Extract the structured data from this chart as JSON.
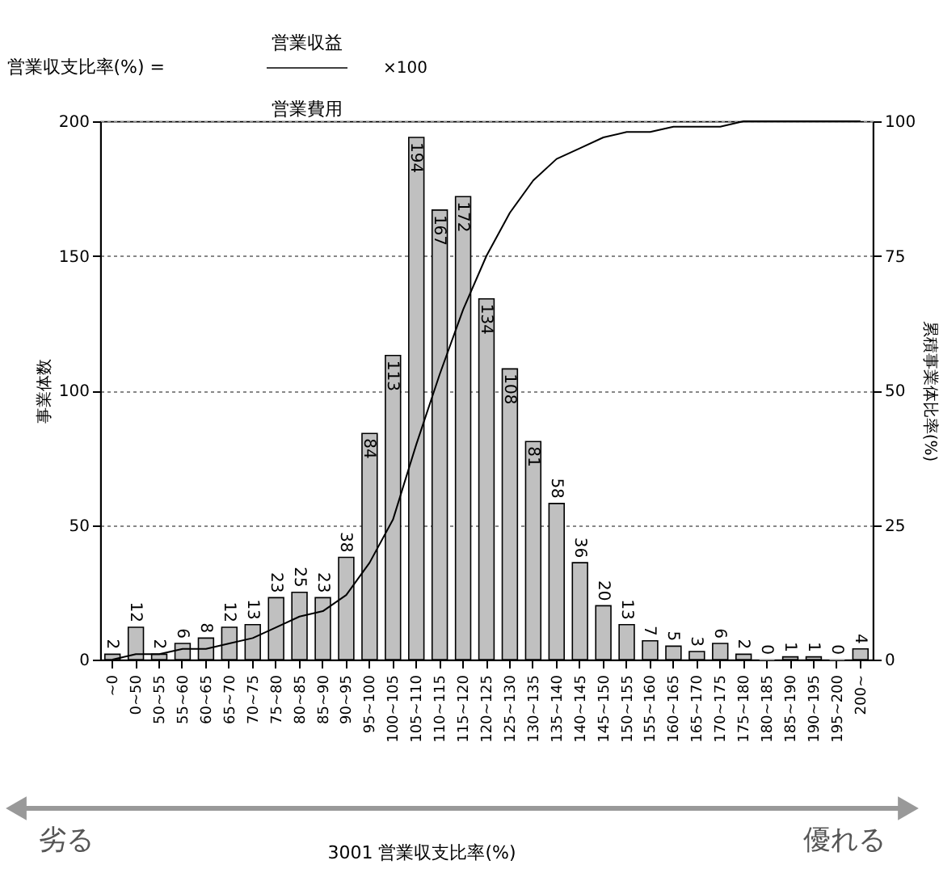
{
  "chart_data": {
    "type": "bar",
    "title": "営業収支比率(%) =",
    "annotations": [
      "営業収益",
      "営業費用",
      "×100",
      "劣る",
      "優れる",
      "3001 営業収支比率(%)"
    ],
    "ylabel": "事業体数",
    "y2label": "累積事業体比率(%)",
    "categories": [
      "~0",
      "0~50",
      "50~55",
      "55~60",
      "60~65",
      "65~70",
      "70~75",
      "75~80",
      "80~85",
      "85~90",
      "90~95",
      "95~100",
      "100~105",
      "105~110",
      "110~115",
      "115~120",
      "120~125",
      "125~130",
      "130~135",
      "135~140",
      "140~145",
      "145~150",
      "150~155",
      "155~160",
      "160~165",
      "165~170",
      "170~175",
      "175~180",
      "180~185",
      "185~190",
      "190~195",
      "195~200",
      "200~"
    ],
    "series": [
      {
        "color": "#c0c0c0",
        "values": [
          2,
          12,
          2,
          6,
          8,
          12,
          13,
          23,
          25,
          23,
          38,
          84,
          113,
          194,
          167,
          172,
          134,
          108,
          81,
          58,
          36,
          20,
          13,
          7,
          5,
          3,
          6,
          2,
          0,
          1,
          1,
          0,
          4
        ],
        "value_labels": [
          "2",
          "12",
          "2",
          "6",
          "8",
          "12",
          "13",
          "23",
          "25",
          "23",
          "38",
          "84",
          "113",
          "194",
          "167",
          "172",
          "134",
          "108",
          "81",
          "58",
          "36",
          "20",
          "13",
          "7",
          "5",
          "3",
          "6",
          "2",
          "0",
          "1",
          "1",
          "0",
          "4"
        ]
      },
      {
        "type": "line",
        "axis": "y2",
        "color": "#000000",
        "values": [
          0,
          1,
          1,
          2,
          2,
          3,
          4,
          6,
          8,
          9,
          12,
          18,
          26,
          40,
          53,
          65,
          75,
          83,
          89,
          93,
          95,
          97,
          98,
          98,
          99,
          99,
          99,
          100,
          100,
          100,
          100,
          100,
          100
        ]
      }
    ],
    "ylim": [
      0,
      200
    ],
    "yticks": [
      0,
      50,
      100,
      150,
      200
    ],
    "y2lim": [
      0,
      100
    ],
    "y2ticks": [
      0,
      25,
      50,
      75,
      100
    ],
    "grid": "y",
    "marker": "none",
    "line_style": "solid"
  }
}
